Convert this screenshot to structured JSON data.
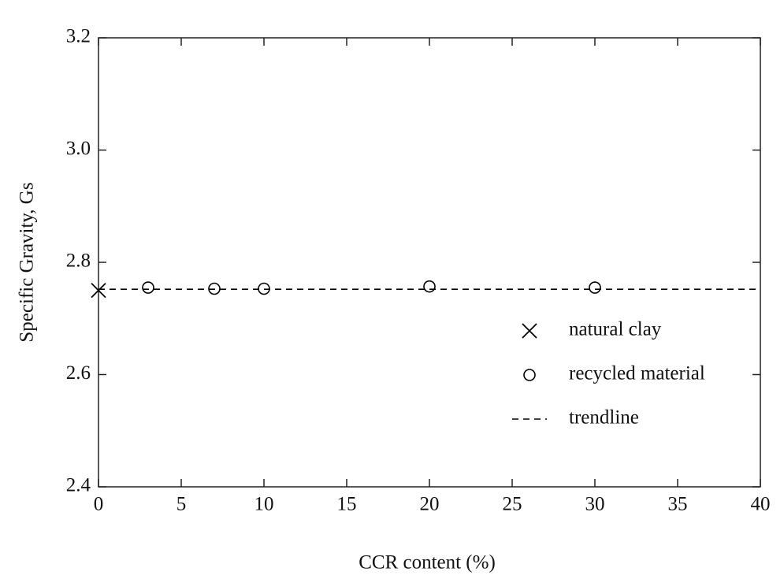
{
  "chart_data": {
    "type": "scatter",
    "xlabel": "CCR content (%)",
    "ylabel": "Specific Gravity, Gs",
    "series": [
      {
        "name": "natural clay",
        "marker": "x",
        "color": "#000000",
        "x": [
          0
        ],
        "values": [
          2.75
        ]
      },
      {
        "name": "recycled material",
        "marker": "o",
        "color": "#000000",
        "x": [
          3,
          7,
          10,
          20,
          30
        ],
        "values": [
          2.755,
          2.753,
          2.753,
          2.757,
          2.755
        ]
      },
      {
        "name": "trendline",
        "marker": "dashed-line",
        "color": "#000000",
        "x": [
          0,
          40
        ],
        "values": [
          2.752,
          2.752
        ]
      }
    ],
    "xlim": [
      0,
      40
    ],
    "xticks": [
      0,
      5,
      10,
      15,
      20,
      25,
      30,
      35,
      40
    ],
    "ylim": [
      2.4,
      3.2
    ],
    "yticks": [
      2.4,
      2.6,
      2.8,
      {
        "value": 3,
        "label": "3.0"
      },
      3.2
    ],
    "grid": false,
    "legend": "right"
  }
}
